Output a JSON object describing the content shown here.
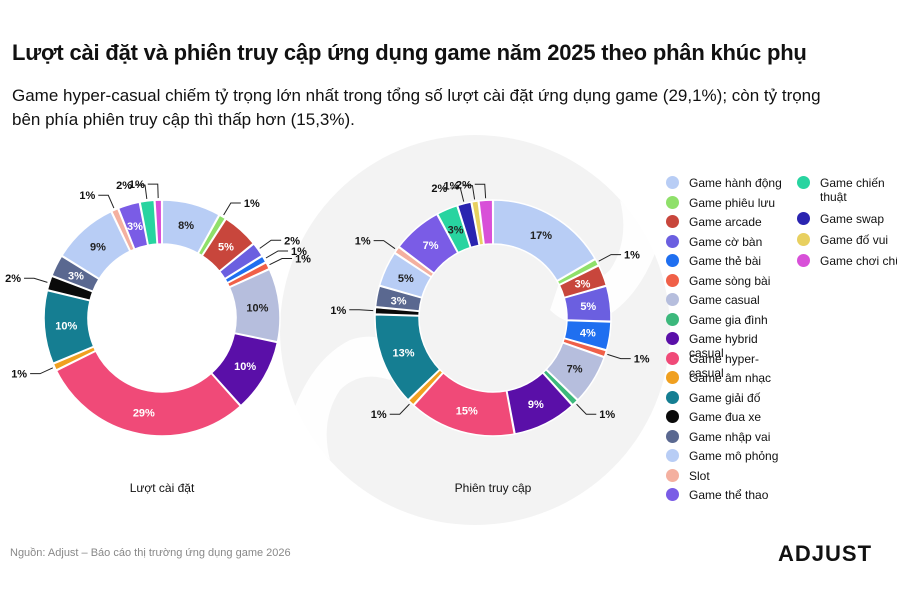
{
  "header": {
    "title": "Lượt cài đặt và phiên truy cập ứng dụng game năm 2025 theo phân khúc phụ",
    "subtitle": "Game hyper-casual chiếm tỷ trọng lớn nhất trong tổng số lượt cài đặt ứng dụng game (29,1%); còn tỷ trọng bên phía phiên truy cập thì thấp hơn (15,3%)."
  },
  "footer": {
    "source": "Nguồn: Adjust – Báo cáo thị trường ứng dụng game 2026",
    "brand": "ADJUST"
  },
  "legend": [
    {
      "label": "Game hành động",
      "color": "#b8cdf5"
    },
    {
      "label": "Game phiêu lưu",
      "color": "#8fe06a"
    },
    {
      "label": "Game arcade",
      "color": "#c8463c"
    },
    {
      "label": "Game cờ bàn",
      "color": "#6b5fe0"
    },
    {
      "label": "Game thẻ bài",
      "color": "#1f6ff0"
    },
    {
      "label": "Game sòng bài",
      "color": "#f06048"
    },
    {
      "label": "Game casual",
      "color": "#b6bedd"
    },
    {
      "label": "Game gia đình",
      "color": "#3cb87c"
    },
    {
      "label": "Game hybrid casual",
      "color": "#5a0fa8"
    },
    {
      "label": "Game hyper-casual",
      "color": "#f04a78"
    },
    {
      "label": "Game âm nhạc",
      "color": "#f0a020"
    },
    {
      "label": "Game giải đố",
      "color": "#157e92"
    },
    {
      "label": "Game đua xe",
      "color": "#0a0a0a"
    },
    {
      "label": "Game nhập vai",
      "color": "#5a6890"
    },
    {
      "label": "Game mô phỏng",
      "color": "#b8cdf5"
    },
    {
      "label": "Slot",
      "color": "#f4b0a0"
    },
    {
      "label": "Game thể thao",
      "color": "#7a5ce6"
    },
    {
      "label": "Game chiến thuật",
      "color": "#28d4a0"
    },
    {
      "label": "Game swap",
      "color": "#2a24b0"
    },
    {
      "label": "Game đố vui",
      "color": "#e8d060"
    },
    {
      "label": "Game chơi chữ",
      "color": "#d850d8"
    }
  ],
  "chart_data": [
    {
      "type": "pie",
      "donut": true,
      "title": "Lượt cài đặt",
      "categories": [
        "Game hành động",
        "Game phiêu lưu",
        "Game arcade",
        "Game cờ bàn",
        "Game thẻ bài",
        "Game sòng bài",
        "Game casual",
        "Game gia đình",
        "Game hybrid casual",
        "Game hyper-casual",
        "Game âm nhạc",
        "Game giải đố",
        "Game đua xe",
        "Game nhập vai",
        "Game mô phỏng",
        "Slot",
        "Game thể thao",
        "Game chiến thuật",
        "Game swap",
        "Game đố vui",
        "Game chơi chữ"
      ],
      "values": [
        8,
        1,
        5,
        2,
        1,
        1,
        10,
        0,
        10,
        29,
        1,
        10,
        2,
        3,
        9,
        1,
        3,
        2,
        0,
        0,
        1
      ],
      "data_labels": [
        "8%",
        "1%",
        "5%",
        "2%",
        "1%",
        "1%",
        "10%",
        "",
        "10%",
        "29%",
        "1%",
        "10%",
        "2%",
        "3%",
        "9%",
        "1%",
        "3%",
        "2%",
        "",
        "",
        "1%"
      ]
    },
    {
      "type": "pie",
      "donut": true,
      "title": "Phiên truy cập",
      "categories": [
        "Game hành động",
        "Game phiêu lưu",
        "Game arcade",
        "Game cờ bàn",
        "Game thẻ bài",
        "Game sòng bài",
        "Game casual",
        "Game gia đình",
        "Game hybrid casual",
        "Game hyper-casual",
        "Game âm nhạc",
        "Game giải đố",
        "Game đua xe",
        "Game nhập vai",
        "Game mô phỏng",
        "Slot",
        "Game thể thao",
        "Game chiến thuật",
        "Game swap",
        "Game đố vui",
        "Game chơi chữ"
      ],
      "values": [
        17,
        1,
        3,
        5,
        4,
        1,
        7,
        1,
        9,
        15,
        1,
        13,
        1,
        3,
        5,
        1,
        7,
        3,
        2,
        1,
        2
      ],
      "data_labels": [
        "17%",
        "1%",
        "3%",
        "5%",
        "4%",
        "1%",
        "7%",
        "1%",
        "9%",
        "15%",
        "1%",
        "13%",
        "1%",
        "3%",
        "5%",
        "1%",
        "7%",
        "3%",
        "2%",
        "1%",
        "2%"
      ]
    }
  ]
}
